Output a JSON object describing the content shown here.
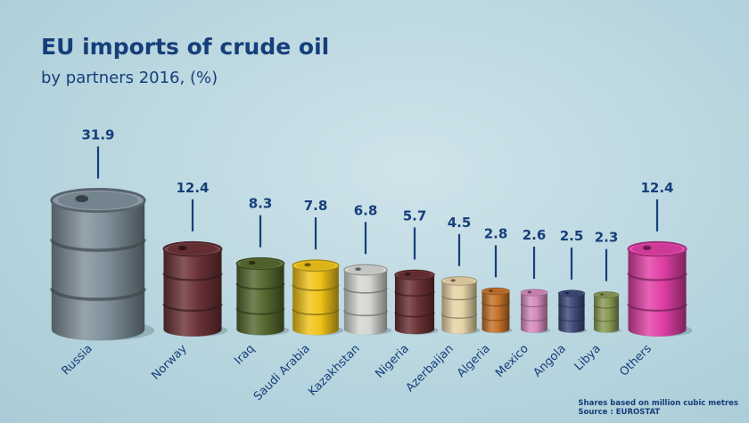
{
  "chart_data": {
    "type": "bar",
    "title": "EU imports of crude oil",
    "subtitle": "by partners 2016, (%)",
    "categories": [
      "Russia",
      "Norway",
      "Iraq",
      "Saudi Arabia",
      "Kazakhstan",
      "Nigeria",
      "Azerbaijan",
      "Algeria",
      "Mexico",
      "Angola",
      "Libya",
      "Others"
    ],
    "values": [
      31.9,
      12.4,
      8.3,
      7.8,
      6.8,
      5.7,
      4.5,
      2.8,
      2.6,
      2.5,
      2.3,
      12.4
    ],
    "value_labels": [
      "31.9",
      "12.4",
      "8.3",
      "7.8",
      "6.8",
      "5.7",
      "4.5",
      "2.8",
      "2.6",
      "2.5",
      "2.3",
      "12.4"
    ],
    "bar_colors": [
      "#7e8f9a",
      "#6b3236",
      "#56682e",
      "#f0c419",
      "#d4d6d2",
      "#6a3033",
      "#e7d3a6",
      "#c4722a",
      "#d58bbd",
      "#3e4a7a",
      "#8a9a55",
      "#e13fa6"
    ],
    "mark_style": "oil-barrel",
    "label_color": "#153e7a",
    "footnote": {
      "line1": "Shares based on million cubic metres",
      "line2": "Source : EUROSTAT"
    }
  }
}
